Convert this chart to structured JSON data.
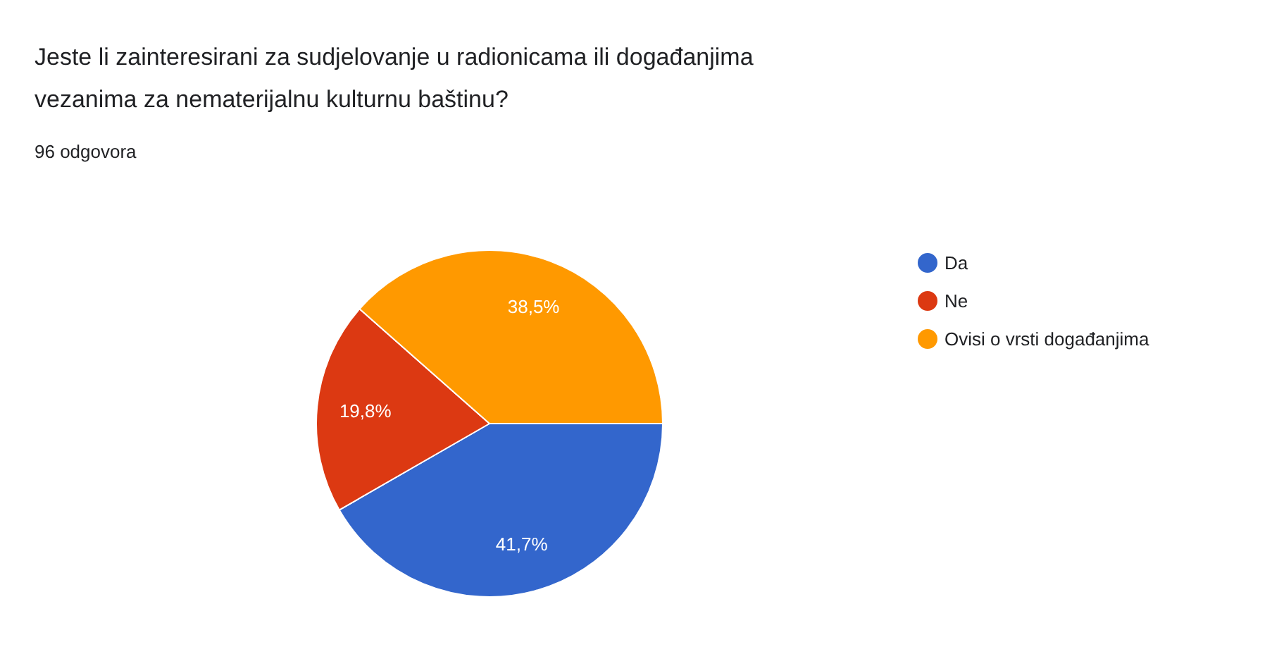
{
  "chart_data": {
    "type": "pie",
    "title": "Jeste li zainteresirani za sudjelovanje u radionicama ili događanjima vezanima za nematerijalnu kulturnu baštinu?",
    "subtitle": "96 odgovora",
    "categories": [
      "Da",
      "Ne",
      "Ovisi o vrsti događanjima"
    ],
    "values": [
      41.7,
      19.8,
      38.5
    ],
    "colors": [
      "#3366cc",
      "#dc3912",
      "#ff9900"
    ],
    "value_labels": [
      "41,7%",
      "19,8%",
      "38,5%"
    ],
    "legend": "right"
  }
}
